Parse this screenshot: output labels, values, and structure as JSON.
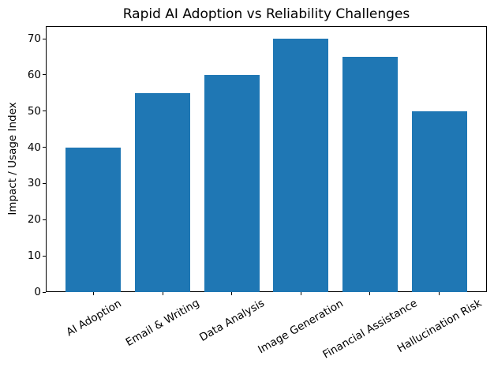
{
  "chart_data": {
    "type": "bar",
    "title": "Rapid AI Adoption vs Reliability Challenges",
    "xlabel": "",
    "ylabel": "Impact / Usage Index",
    "categories": [
      "AI Adoption",
      "Email & Writing",
      "Data Analysis",
      "Image Generation",
      "Financial Assistance",
      "Hallucination Risk"
    ],
    "values": [
      40,
      55,
      60,
      70,
      65,
      50
    ],
    "bar_color": "#1f77b4",
    "yticks": [
      0,
      10,
      20,
      30,
      40,
      50,
      60,
      70
    ],
    "ylim": [
      0,
      73.5
    ],
    "xlim": [
      -0.69,
      5.69
    ],
    "bar_width": 0.8,
    "xtick_rotation_deg": 30,
    "grid": false,
    "legend": null,
    "text_color": "#000000",
    "background_color": "#ffffff"
  }
}
